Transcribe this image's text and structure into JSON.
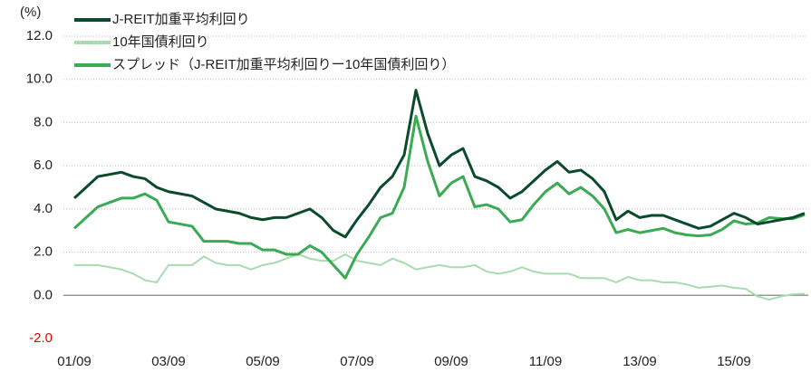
{
  "chart_data": {
    "type": "line",
    "unit_label": "(%)",
    "categories": [
      "01/09",
      null,
      null,
      null,
      null,
      null,
      null,
      null,
      "03/09",
      null,
      null,
      null,
      null,
      null,
      null,
      null,
      "05/09",
      null,
      null,
      null,
      null,
      null,
      null,
      null,
      "07/09",
      null,
      null,
      null,
      null,
      null,
      null,
      null,
      "09/09",
      null,
      null,
      null,
      null,
      null,
      null,
      null,
      "11/09",
      null,
      null,
      null,
      null,
      null,
      null,
      null,
      "13/09",
      null,
      null,
      null,
      null,
      null,
      null,
      null,
      "15/09",
      null,
      null,
      null,
      null,
      null,
      null
    ],
    "series": [
      {
        "name": "J-REIT加重平均利回り",
        "color": "#0b4a2a",
        "values": [
          4.5,
          5.0,
          5.5,
          5.6,
          5.7,
          5.5,
          5.4,
          5.0,
          4.8,
          4.7,
          4.6,
          4.3,
          4.0,
          3.9,
          3.8,
          3.6,
          3.5,
          3.6,
          3.6,
          3.8,
          4.0,
          3.6,
          3.0,
          2.7,
          3.5,
          4.2,
          5.0,
          5.5,
          6.5,
          9.5,
          7.5,
          6.0,
          6.5,
          6.8,
          5.5,
          5.3,
          5.0,
          4.5,
          4.8,
          5.3,
          5.8,
          6.2,
          5.7,
          5.8,
          5.4,
          4.8,
          3.5,
          3.9,
          3.6,
          3.7,
          3.7,
          3.5,
          3.3,
          3.1,
          3.2,
          3.5,
          3.8,
          3.6,
          3.3,
          3.4,
          3.5,
          3.6,
          3.8
        ]
      },
      {
        "name": "10年国債利回り",
        "color": "#a8dcb0",
        "values": [
          1.4,
          1.4,
          1.4,
          1.3,
          1.2,
          1.0,
          0.7,
          0.6,
          1.4,
          1.4,
          1.4,
          1.8,
          1.5,
          1.4,
          1.4,
          1.2,
          1.4,
          1.5,
          1.7,
          1.9,
          1.7,
          1.6,
          1.6,
          1.9,
          1.6,
          1.5,
          1.4,
          1.7,
          1.5,
          1.2,
          1.3,
          1.4,
          1.3,
          1.3,
          1.4,
          1.1,
          1.0,
          1.1,
          1.3,
          1.1,
          1.0,
          1.0,
          1.0,
          0.8,
          0.8,
          0.8,
          0.6,
          0.85,
          0.7,
          0.7,
          0.6,
          0.6,
          0.5,
          0.35,
          0.4,
          0.45,
          0.35,
          0.3,
          -0.05,
          -0.2,
          -0.05,
          0.05,
          0.07
        ]
      },
      {
        "name": "スプレッド（J-REIT加重平均利回りー10年国債利回り）",
        "color": "#3aaa55",
        "values": [
          3.1,
          3.6,
          4.1,
          4.3,
          4.5,
          4.5,
          4.7,
          4.4,
          3.4,
          3.3,
          3.2,
          2.5,
          2.5,
          2.5,
          2.4,
          2.4,
          2.1,
          2.1,
          1.9,
          1.9,
          2.3,
          2.0,
          1.4,
          0.8,
          1.9,
          2.7,
          3.6,
          3.8,
          5.0,
          8.3,
          6.2,
          4.6,
          5.2,
          5.5,
          4.1,
          4.2,
          4.0,
          3.4,
          3.5,
          4.2,
          4.8,
          5.2,
          4.7,
          5.0,
          4.6,
          4.0,
          2.9,
          3.05,
          2.9,
          3.0,
          3.1,
          2.9,
          2.8,
          2.75,
          2.8,
          3.05,
          3.45,
          3.3,
          3.35,
          3.6,
          3.55,
          3.55,
          3.73
        ]
      }
    ],
    "ylim": [
      -2,
      12
    ],
    "yticks": [
      {
        "value": -2,
        "label": "-2.0"
      },
      {
        "value": 0,
        "label": "0.0"
      },
      {
        "value": 2,
        "label": "2.0"
      },
      {
        "value": 4,
        "label": "4.0"
      },
      {
        "value": 6,
        "label": "6.0"
      },
      {
        "value": 8,
        "label": "8.0"
      },
      {
        "value": 10,
        "label": "10.0"
      },
      {
        "value": 12,
        "label": "12.0"
      }
    ],
    "negative_tick_color": "#e00000",
    "grid": true,
    "legend": "upper left"
  }
}
